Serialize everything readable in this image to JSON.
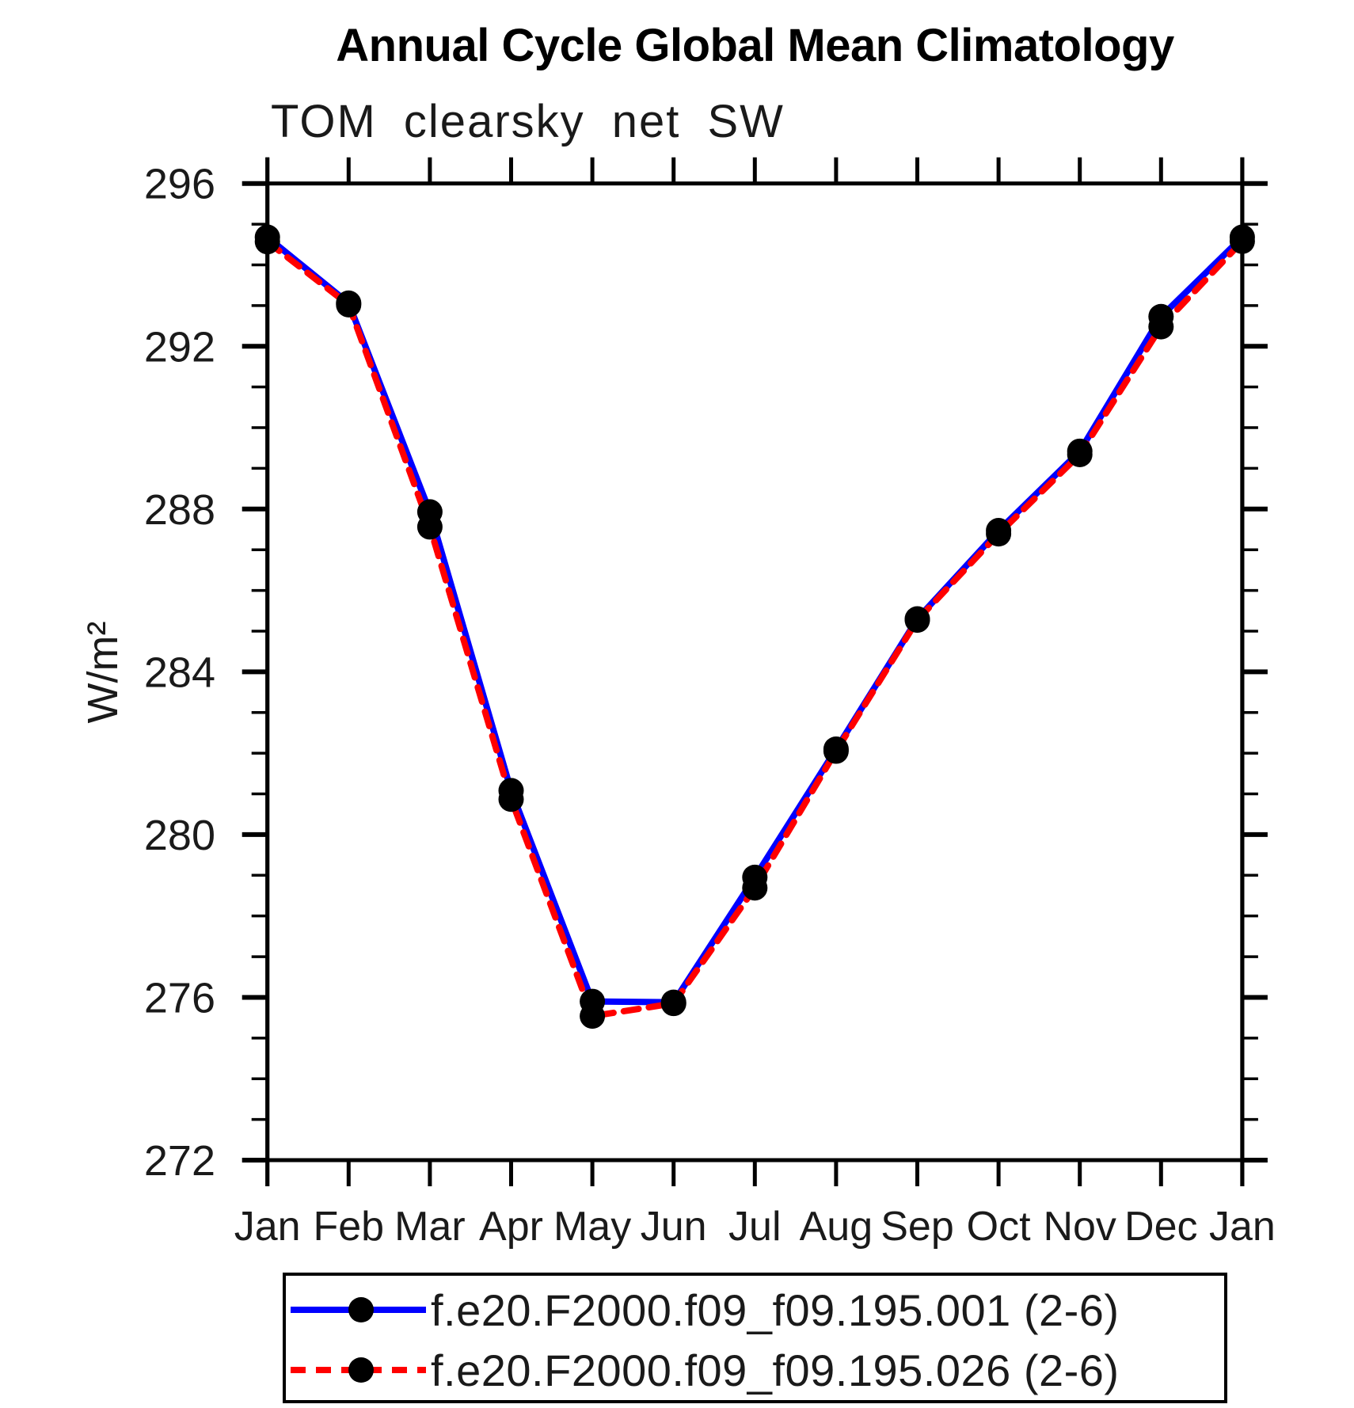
{
  "page": {
    "background": "#ffffff",
    "title": "Annual Cycle Global Mean Climatology",
    "subtitle": "TOM clearsky net SW"
  },
  "chart_data": {
    "type": "line",
    "title": "Annual Cycle Global Mean Climatology",
    "subtitle": "TOM clearsky net SW",
    "xlabel": "",
    "ylabel": "W/m²",
    "categories": [
      "Jan",
      "Feb",
      "Mar",
      "Apr",
      "May",
      "Jun",
      "Jul",
      "Aug",
      "Sep",
      "Oct",
      "Nov",
      "Dec",
      "Jan"
    ],
    "ylim": [
      272,
      296
    ],
    "ytick_major": [
      272,
      276,
      280,
      284,
      288,
      292,
      296
    ],
    "ytick_minor_interval": 1,
    "grid": false,
    "axis_color": "#000000",
    "legend_position": "bottom-box",
    "series": [
      {
        "name": "f.e20.F2000.f09_f09.195.001 (2-6)",
        "color": "#0000ff",
        "line_style": "solid",
        "marker": "filled-circle",
        "marker_color": "#000000",
        "values": [
          294.68,
          293.06,
          287.93,
          281.08,
          275.9,
          275.88,
          278.95,
          282.1,
          285.3,
          287.47,
          289.42,
          292.73,
          294.68
        ]
      },
      {
        "name": "f.e20.F2000.f09_f09.195.026 (2-6)",
        "color": "#ff0000",
        "line_style": "dashed",
        "marker": "filled-circle",
        "marker_color": "#000000",
        "values": [
          294.57,
          293.02,
          287.56,
          280.87,
          275.54,
          275.85,
          278.69,
          282.05,
          285.27,
          287.39,
          289.34,
          292.48,
          294.58
        ]
      }
    ]
  }
}
